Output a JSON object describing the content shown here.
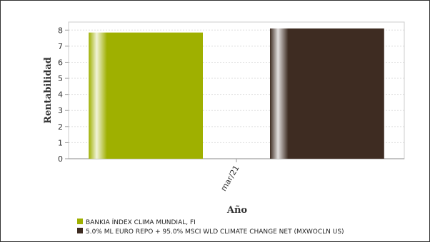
{
  "chart_data": {
    "type": "bar",
    "title": "",
    "xlabel": "Año",
    "ylabel": "Rentabilidad",
    "categories": [
      "mar/21"
    ],
    "ylim": [
      0,
      8.5
    ],
    "yticks": [
      0,
      1,
      2,
      3,
      4,
      5,
      6,
      7,
      8
    ],
    "grid": true,
    "legend_position": "bottom-left",
    "series": [
      {
        "name": "BANKIA ÍNDEX CLIMA MUNDIAL, FI",
        "values": [
          7.85
        ],
        "color": "#9fb000"
      },
      {
        "name": "5.0% ML EURO REPO + 95.0% MSCI WLD CLIMATE CHANGE NET (MXWOCLN US)",
        "values": [
          8.1
        ],
        "color": "#3e2c22"
      }
    ]
  }
}
